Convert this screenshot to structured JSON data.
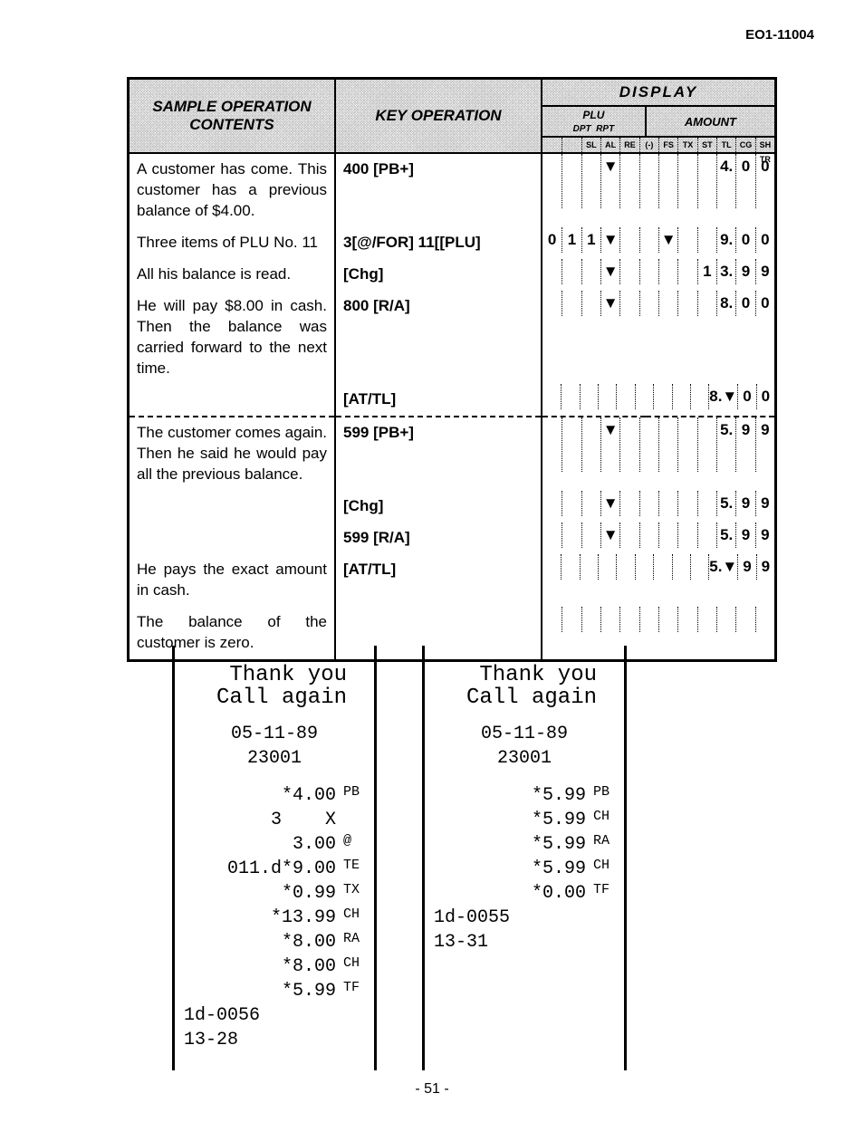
{
  "page_code": "EO1-11004",
  "page_number": "- 51 -",
  "headers": {
    "sample": "SAMPLE OPERATION CONTENTS",
    "key": "KEY OPERATION",
    "display": "DISPLAY",
    "plu_dpt": "PLU",
    "dpt": "DPT",
    "rpt": "RPT",
    "amount": "AMOUNT",
    "digit_cols": [
      "SL",
      "AL",
      "RE",
      "(-)",
      "FS",
      "TX",
      "ST",
      "TL",
      "CG",
      "SH TR"
    ]
  },
  "rows": [
    {
      "sample": "A customer has come. This customer has a previous balance of $4.00.",
      "key": "400 [PB+]",
      "display": [
        "",
        "",
        "",
        "▼",
        "",
        "",
        "",
        "",
        "",
        "4.",
        "0",
        "0"
      ],
      "tall": true
    },
    {
      "sample": "Three items of PLU No. 11",
      "key": "3[@/FOR] 11[[PLU]",
      "display": [
        "0",
        "1",
        "1",
        "▼",
        "",
        "",
        "▼",
        "",
        "",
        "9.",
        "0",
        "0"
      ]
    },
    {
      "sample": "All his balance is read.",
      "key": "[Chg]",
      "display": [
        "",
        "",
        "",
        "▼",
        "",
        "",
        "",
        "",
        "1",
        "3.",
        "9",
        "9"
      ]
    },
    {
      "sample": "He will pay $8.00 in cash. Then the balance was carried forward to the next time.",
      "key": "800 [R/A]",
      "display": [
        "",
        "",
        "",
        "▼",
        "",
        "",
        "",
        "",
        "",
        "8.",
        "0",
        "0"
      ]
    },
    {
      "sample": "",
      "key": "[AT/TL]",
      "display": [
        "",
        "",
        "",
        "",
        "",
        "",
        "",
        "",
        "",
        "8.▼",
        "0",
        "0"
      ]
    },
    {
      "separator": true
    },
    {
      "sample": "The customer comes again. Then he said he would pay all the previous balance.",
      "key": "599 [PB+]",
      "display": [
        "",
        "",
        "",
        "▼",
        "",
        "",
        "",
        "",
        "",
        "5.",
        "9",
        "9"
      ],
      "tall": true
    },
    {
      "sample": "",
      "key": "[Chg]",
      "display": [
        "",
        "",
        "",
        "▼",
        "",
        "",
        "",
        "",
        "",
        "5.",
        "9",
        "9"
      ]
    },
    {
      "sample": "",
      "key": "599 [R/A]",
      "display": [
        "",
        "",
        "",
        "▼",
        "",
        "",
        "",
        "",
        "",
        "5.",
        "9",
        "9"
      ]
    },
    {
      "sample": "He pays the exact amount in cash.",
      "key": "[AT/TL]",
      "display": [
        "",
        "",
        "",
        "",
        "",
        "",
        "",
        "",
        "",
        "5.▼",
        "9",
        "9"
      ]
    },
    {
      "sample": "The balance of the customer is zero.",
      "key": "",
      "display": [
        "",
        "",
        "",
        "",
        "",
        "",
        "",
        "",
        "",
        "",
        "",
        ""
      ]
    }
  ],
  "receipts": [
    {
      "header1": "Thank you",
      "header2": "Call again",
      "date": "05-11-89",
      "code": "23001",
      "lines": [
        {
          "amt": "*4.00",
          "sym": "PB"
        },
        {
          "amt": "3    X",
          "sym": ""
        },
        {
          "amt": "3.00",
          "sym": "@"
        },
        {
          "amt": "011.d*9.00",
          "sym": "TE"
        },
        {
          "amt": "*0.99",
          "sym": "TX"
        },
        {
          "amt": "*13.99",
          "sym": "CH"
        },
        {
          "amt": "*8.00",
          "sym": "RA"
        },
        {
          "amt": "*8.00",
          "sym": "CH"
        },
        {
          "amt": "*5.99",
          "sym": "TF"
        }
      ],
      "footer1": "1d-0056",
      "footer2": "13-28"
    },
    {
      "header1": "Thank you",
      "header2": "Call again",
      "date": "05-11-89",
      "code": "23001",
      "lines": [
        {
          "amt": "*5.99",
          "sym": "PB"
        },
        {
          "amt": "*5.99",
          "sym": "CH"
        },
        {
          "amt": "*5.99",
          "sym": "RA"
        },
        {
          "amt": "*5.99",
          "sym": "CH"
        },
        {
          "amt": "*0.00",
          "sym": "TF"
        }
      ],
      "footer1": "1d-0055",
      "footer2": "13-31"
    }
  ]
}
